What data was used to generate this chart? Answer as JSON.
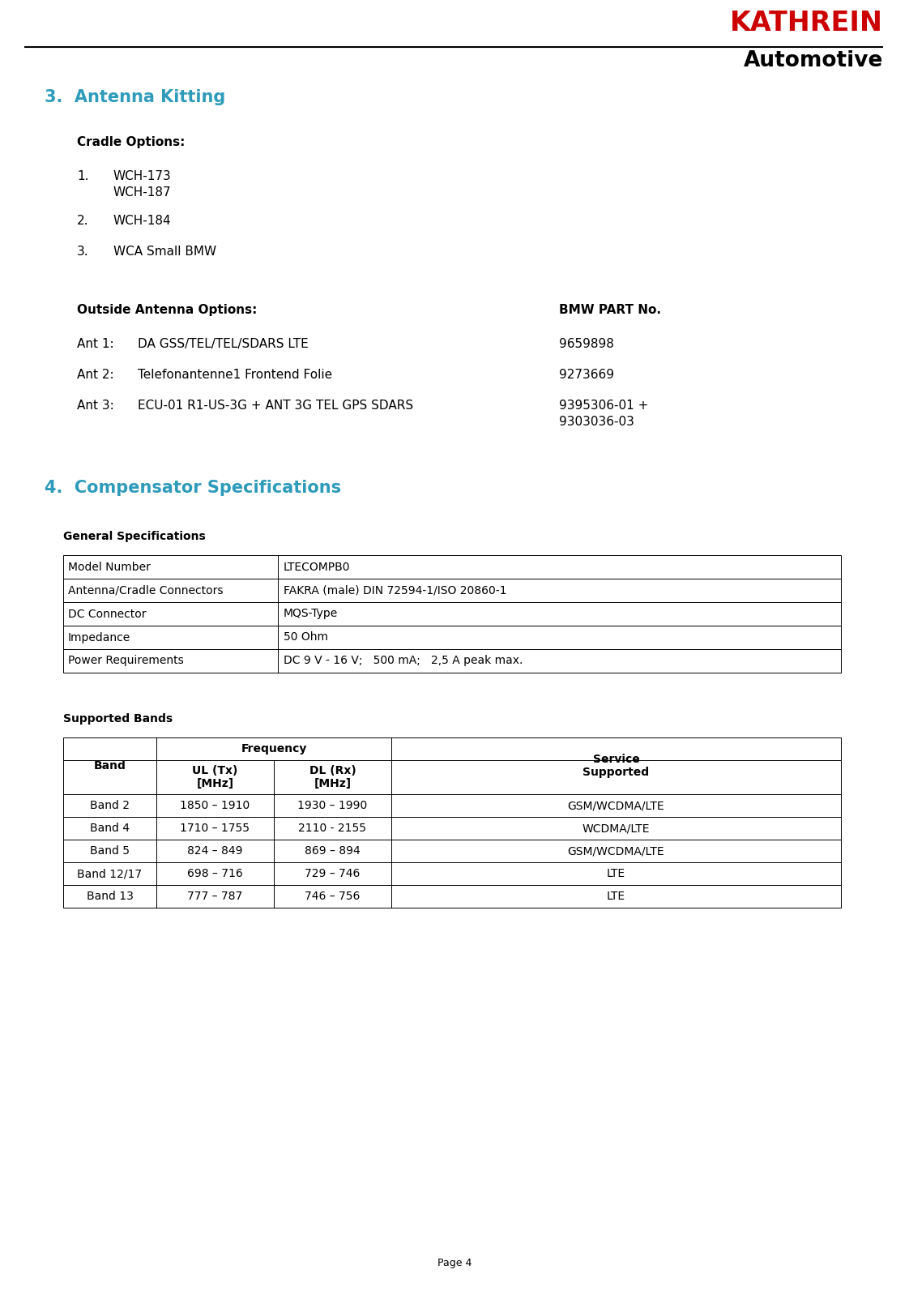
{
  "page_num": "Page 4",
  "kathrein_text": "KATHREIN",
  "kathrein_color": "#cc0000",
  "automotive_text": "Automotive",
  "automotive_color": "#000000",
  "section3_title": "3.  Antenna Kitting",
  "section3_color": "#2e9bba",
  "cradle_options_label": "Cradle Options:",
  "cradle_items": [
    {
      "num": "1.",
      "line1": "WCH-173",
      "line2": "WCH-187"
    },
    {
      "num": "2.",
      "line1": "WCH-184",
      "line2": ""
    },
    {
      "num": "3.",
      "line1": "WCA Small BMW",
      "line2": ""
    }
  ],
  "outside_antenna_label": "Outside Antenna Options:",
  "bmw_part_label": "BMW PART No.",
  "antenna_rows": [
    {
      "label": "Ant 1:",
      "desc": "DA GSS/TEL/TEL/SDARS LTE",
      "part1": "9659898",
      "part2": ""
    },
    {
      "label": "Ant 2:",
      "desc": "Telefonantenne1 Frontend Folie",
      "part1": "9273669",
      "part2": ""
    },
    {
      "label": "Ant 3:",
      "desc": "ECU-01 R1-US-3G + ANT 3G TEL GPS SDARS",
      "part1": "9395306-01 +",
      "part2": "9303036-03"
    }
  ],
  "section4_title": "4.  Compensator Specifications",
  "section4_color": "#2e9bba",
  "general_specs_label": "General Specifications",
  "general_specs_rows": [
    [
      "Model Number",
      "LTECOMPB0"
    ],
    [
      "Antenna/Cradle Connectors",
      "FAKRA (male) DIN 72594-1/ISO 20860-1"
    ],
    [
      "DC Connector",
      "MQS-Type"
    ],
    [
      "Impedance",
      "50 Ohm"
    ],
    [
      "Power Requirements",
      "DC 9 V - 16 V;   500 mA;   2,5 A peak max."
    ]
  ],
  "supported_bands_label": "Supported Bands",
  "bands_rows": [
    [
      "Band 2",
      "1850 – 1910",
      "1930 – 1990",
      "GSM/WCDMA/LTE"
    ],
    [
      "Band 4",
      "1710 – 1755",
      "2110 - 2155",
      "WCDMA/LTE"
    ],
    [
      "Band 5",
      "824 – 849",
      "869 – 894",
      "GSM/WCDMA/LTE"
    ],
    [
      "Band 12/17",
      "698 – 716",
      "729 – 746",
      "LTE"
    ],
    [
      "Band 13",
      "777 – 787",
      "746 – 756",
      "LTE"
    ]
  ],
  "bg_color": "#ffffff",
  "font_color": "#000000"
}
